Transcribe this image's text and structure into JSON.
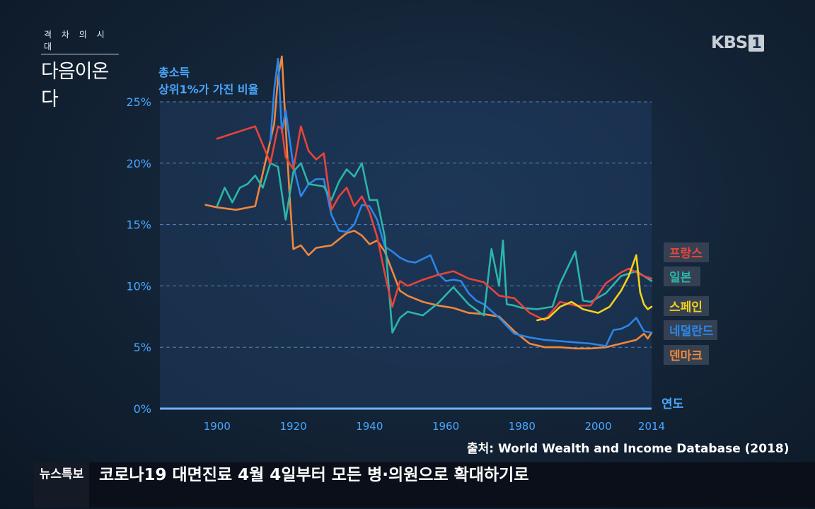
{
  "program_logo": {
    "small": "격 차 의 시 대",
    "big": "다음이온다"
  },
  "channel_logo": {
    "text": "KBS",
    "num": "1"
  },
  "source": "출처: World Wealth and Income Database (2018)",
  "ticker": {
    "label": "뉴스특보",
    "text": "코로나19 대면진료 4월 4일부터 모든 병·의원으로 확대하기로"
  },
  "chart_data": {
    "type": "line",
    "ylabel_lines": [
      "총소득",
      "상위1%가 가진 비율"
    ],
    "xlabel": "연도",
    "xlim": [
      1885,
      2014
    ],
    "ylim": [
      0,
      25
    ],
    "x_ticks": [
      1900,
      1920,
      1940,
      1960,
      1980,
      2000,
      2014
    ],
    "y_ticks": [
      {
        "v": 0,
        "label": "0%"
      },
      {
        "v": 5,
        "label": "5%"
      },
      {
        "v": 10,
        "label": "10%"
      },
      {
        "v": 15,
        "label": "15%"
      },
      {
        "v": 20,
        "label": "20%"
      },
      {
        "v": 25,
        "label": "25%"
      }
    ],
    "grid": true,
    "series": [
      {
        "name": "프랑스",
        "color": "#e8443a",
        "x": [
          1900,
          1910,
          1914,
          1916,
          1917,
          1918,
          1920,
          1922,
          1924,
          1926,
          1928,
          1930,
          1932,
          1934,
          1936,
          1938,
          1940,
          1942,
          1944,
          1946,
          1948,
          1950,
          1954,
          1958,
          1962,
          1966,
          1970,
          1974,
          1978,
          1982,
          1986,
          1990,
          1994,
          1998,
          2002,
          2006,
          2008,
          2012,
          2014
        ],
        "y": [
          22,
          23,
          20,
          23,
          22.8,
          20.5,
          19.5,
          23,
          21,
          20.3,
          20.8,
          16.2,
          17.3,
          18,
          16.5,
          17.3,
          16,
          14,
          11,
          8.3,
          10.4,
          10,
          10.5,
          10.9,
          11.2,
          10.6,
          10.3,
          9.2,
          9,
          7.8,
          7.2,
          8.7,
          8.4,
          8.4,
          10.2,
          11.1,
          11.4,
          10.8,
          10.6
        ]
      },
      {
        "name": "일본",
        "color": "#2bb5ab",
        "x": [
          1900,
          1902,
          1904,
          1906,
          1908,
          1910,
          1912,
          1914,
          1916,
          1918,
          1920,
          1922,
          1924,
          1926,
          1928,
          1930,
          1932,
          1934,
          1936,
          1938,
          1940,
          1942,
          1944,
          1946,
          1948,
          1950,
          1954,
          1958,
          1962,
          1966,
          1970,
          1972,
          1974,
          1975,
          1976,
          1978,
          1980,
          1984,
          1988,
          1990,
          1994,
          1996,
          1998,
          2002,
          2006,
          2010,
          2014
        ],
        "y": [
          16.5,
          18,
          16.8,
          18,
          18.3,
          19,
          18,
          20,
          19.7,
          15.4,
          19.3,
          20,
          18.3,
          18.2,
          18.1,
          17,
          18.5,
          19.5,
          18.9,
          20,
          17,
          17,
          14,
          6.2,
          7.4,
          7.9,
          7.6,
          8.6,
          9.9,
          8.5,
          7.6,
          13,
          10,
          13.7,
          8.5,
          8.4,
          8.2,
          8.1,
          8.3,
          10.2,
          12.8,
          8.8,
          8.7,
          9.4,
          10.8,
          11.2,
          10.4
        ]
      },
      {
        "name": "스페인",
        "color": "#f2d21b",
        "x": [
          1984,
          1987,
          1990,
          1993,
          1996,
          2000,
          2003,
          2006,
          2008,
          2010,
          2011,
          2012,
          2013,
          2014
        ],
        "y": [
          7.2,
          7.4,
          8.3,
          8.7,
          8.1,
          7.8,
          8.3,
          9.6,
          10.8,
          12.5,
          9.5,
          8.5,
          8.1,
          8.3
        ]
      },
      {
        "name": "네덜란드",
        "color": "#2b86e8",
        "x": [
          1914,
          1915,
          1916,
          1917,
          1918,
          1920,
          1922,
          1924,
          1926,
          1928,
          1930,
          1932,
          1934,
          1936,
          1938,
          1940,
          1942,
          1944,
          1946,
          1948,
          1950,
          1952,
          1954,
          1956,
          1958,
          1960,
          1962,
          1964,
          1966,
          1968,
          1970,
          1974,
          1978,
          1982,
          1986,
          1990,
          1994,
          1998,
          2002,
          2004,
          2006,
          2008,
          2010,
          2012,
          2014
        ],
        "y": [
          21.8,
          26,
          28.5,
          22.5,
          24.3,
          19.8,
          17.3,
          18.3,
          18.7,
          18.7,
          15.8,
          14.5,
          14.4,
          15,
          16.6,
          16.5,
          15.4,
          13.2,
          12.8,
          12.3,
          12,
          11.9,
          12.2,
          12.5,
          11,
          10.4,
          10.5,
          10.4,
          9.4,
          8.8,
          8.5,
          7.4,
          6.1,
          5.8,
          5.6,
          5.5,
          5.4,
          5.3,
          5.1,
          6.4,
          6.5,
          6.8,
          7.4,
          6.3,
          6.2
        ]
      },
      {
        "name": "덴마크",
        "color": "#f0873c",
        "x": [
          1897,
          1900,
          1905,
          1910,
          1915,
          1916,
          1917,
          1918,
          1919,
          1920,
          1922,
          1924,
          1926,
          1928,
          1930,
          1934,
          1936,
          1938,
          1940,
          1942,
          1944,
          1946,
          1948,
          1950,
          1954,
          1958,
          1962,
          1966,
          1970,
          1974,
          1978,
          1982,
          1986,
          1990,
          1994,
          1998,
          2002,
          2006,
          2010,
          2012,
          2013,
          2014
        ],
        "y": [
          16.6,
          16.4,
          16.2,
          16.5,
          23.2,
          27,
          28.7,
          23,
          17.5,
          13,
          13.3,
          12.5,
          13.1,
          13.2,
          13.3,
          14.3,
          14.5,
          14.1,
          13.4,
          13.7,
          12.8,
          11.2,
          9.6,
          9.2,
          8.7,
          8.4,
          8.2,
          7.8,
          7.7,
          7.5,
          6.3,
          5.3,
          5,
          5,
          4.9,
          4.9,
          5,
          5.3,
          5.6,
          6.1,
          5.7,
          6.2
        ]
      }
    ]
  },
  "legend_labels": [
    {
      "text": "프랑스",
      "color": "#e8443a"
    },
    {
      "text": "일본",
      "color": "#2bb5ab"
    },
    {
      "text": "스페인",
      "color": "#f2d21b"
    },
    {
      "text": "네덜란드",
      "color": "#2b86e8"
    },
    {
      "text": "덴마크",
      "color": "#f0873c"
    }
  ]
}
